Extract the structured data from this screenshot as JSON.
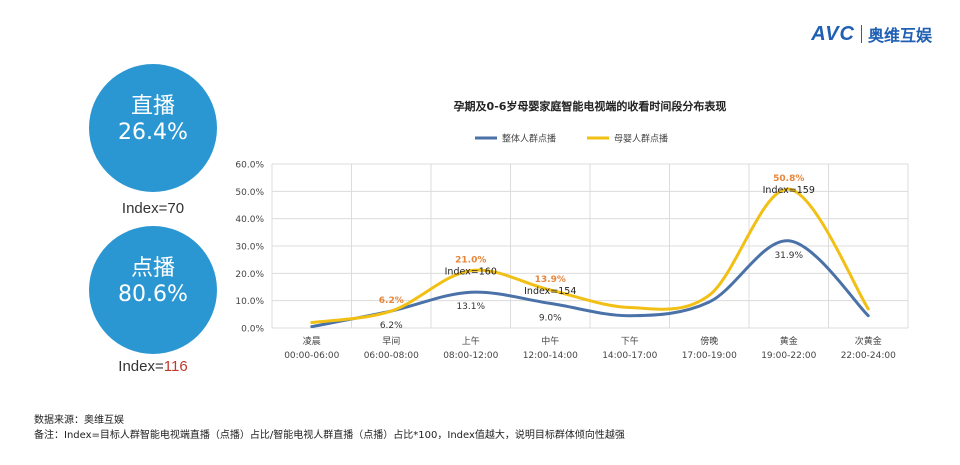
{
  "brand": {
    "mark": "AVC",
    "name": "奥维互娱"
  },
  "live": {
    "label": "直播",
    "value": "26.4%",
    "index_label": "Index=",
    "index_value": "70"
  },
  "vod": {
    "label": "点播",
    "value": "80.6%",
    "index_label": "Index=",
    "index_value": "116"
  },
  "notes": {
    "source": "数据来源：奥维互娱",
    "remark": "备注：Index=目标人群智能电视端直播（点播）占比/智能电视人群直播（点播）占比*100，Index值越大，说明目标群体倾向性越强"
  },
  "colors": {
    "overall": "#4a72a8",
    "mother": "#f2c014",
    "accent_label": "#e8863a",
    "circle": "#2b97d2"
  },
  "chart_data": {
    "type": "line",
    "title": "孕期及0-6岁母婴家庭智能电视端的收看时间段分布表现",
    "categories": [
      [
        "凌晨",
        "00:00-06:00"
      ],
      [
        "早间",
        "06:00-08:00"
      ],
      [
        "上午",
        "08:00-12:00"
      ],
      [
        "中午",
        "12:00-14:00"
      ],
      [
        "下午",
        "14:00-17:00"
      ],
      [
        "傍晚",
        "17:00-19:00"
      ],
      [
        "黄金",
        "19:00-22:00"
      ],
      [
        "次黄金",
        "22:00-24:00"
      ]
    ],
    "ylim": [
      0,
      60
    ],
    "yticks": [
      "0.0%",
      "10.0%",
      "20.0%",
      "30.0%",
      "40.0%",
      "50.0%",
      "60.0%"
    ],
    "smooth": true,
    "grid": true,
    "legend_position": "top",
    "series": [
      {
        "name": "整体人群点播",
        "color": "#4a72a8",
        "values": [
          0.5,
          6.2,
          13.1,
          9.0,
          4.5,
          9.5,
          31.9,
          4.5
        ]
      },
      {
        "name": "母婴人群点播",
        "color": "#f2c014",
        "values": [
          2.0,
          6.2,
          21.0,
          13.9,
          7.5,
          12.0,
          50.8,
          7.0
        ]
      }
    ],
    "data_labels": [
      {
        "series": 1,
        "index": 1,
        "text": "6.2%"
      },
      {
        "series": 0,
        "index": 1,
        "text": "6.2%"
      },
      {
        "series": 1,
        "index": 2,
        "text": "21.0%"
      },
      {
        "series": 0,
        "index": 2,
        "text": "13.1%"
      },
      {
        "series": 1,
        "index": 3,
        "text": "13.9%"
      },
      {
        "series": 0,
        "index": 3,
        "text": "9.0%"
      },
      {
        "series": 1,
        "index": 6,
        "text": "50.8%"
      },
      {
        "series": 0,
        "index": 6,
        "text": "31.9%"
      }
    ],
    "index_labels": [
      {
        "index": 2,
        "text": "Index=160"
      },
      {
        "index": 3,
        "text": "Index=154"
      },
      {
        "index": 6,
        "text": "Index=159"
      }
    ]
  }
}
